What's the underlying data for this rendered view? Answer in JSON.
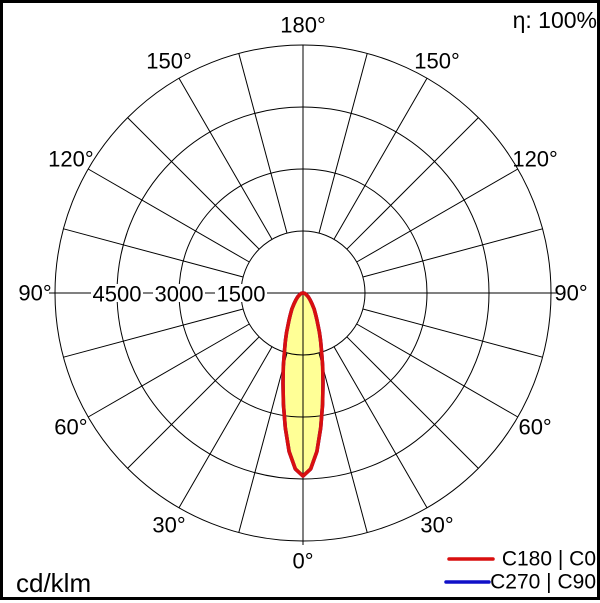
{
  "page": {
    "efficiency": "η: 100%",
    "unit": "cd/klm"
  },
  "legend": {
    "items": [
      {
        "label": "C180 | C0",
        "color": "#d90f0f"
      },
      {
        "label": "C270 | C90",
        "color": "#1010c8"
      }
    ]
  },
  "chart_data": {
    "type": "polar",
    "subtype": "luminous-intensity-distribution",
    "title": "Polar luminous intensity distribution curve",
    "unit": "cd/klm",
    "efficiency_label": "η: 100%",
    "gamma_axis": {
      "labels_deg": [
        0,
        30,
        60,
        90,
        120,
        150,
        180
      ],
      "grid_step_deg": 15,
      "zero_direction": "down"
    },
    "radial_axis": {
      "rings_cd_klm": [
        1500,
        3000,
        4500,
        6000
      ],
      "labeled_rings_cd_klm": [
        4500,
        3000,
        1500
      ],
      "max_cd_klm": 6000
    },
    "grid": true,
    "legend_position": "bottom-right",
    "series": [
      {
        "name": "C180 | C0",
        "color": "#d90f0f",
        "fill": "#ffff96",
        "gamma_deg": [
          0,
          2.5,
          5,
          7.5,
          10,
          12.5,
          15,
          17.5,
          20,
          22.5,
          25,
          27.5,
          30,
          35,
          40,
          45,
          50,
          55,
          60,
          65,
          70,
          75,
          80,
          85,
          90,
          120,
          150,
          180
        ],
        "intensity_cd_klm": [
          4430,
          4260,
          3850,
          3290,
          2730,
          2240,
          1840,
          1500,
          1250,
          1040,
          860,
          730,
          620,
          470,
          340,
          250,
          190,
          150,
          110,
          80,
          60,
          50,
          30,
          20,
          10,
          0,
          0,
          0
        ]
      },
      {
        "name": "C270 | C90",
        "color": "#1010c8",
        "fill": null,
        "coincides_with": "C180 | C0",
        "gamma_deg": [
          0,
          2.5,
          5,
          7.5,
          10,
          12.5,
          15,
          17.5,
          20,
          22.5,
          25,
          27.5,
          30,
          35,
          40,
          45,
          50,
          55,
          60,
          65,
          70,
          75,
          80,
          85,
          90,
          120,
          150,
          180
        ],
        "intensity_cd_klm": [
          4430,
          4260,
          3850,
          3290,
          2730,
          2240,
          1840,
          1500,
          1250,
          1040,
          860,
          730,
          620,
          470,
          340,
          250,
          190,
          150,
          110,
          80,
          60,
          50,
          30,
          20,
          10,
          0,
          0,
          0
        ]
      }
    ]
  }
}
